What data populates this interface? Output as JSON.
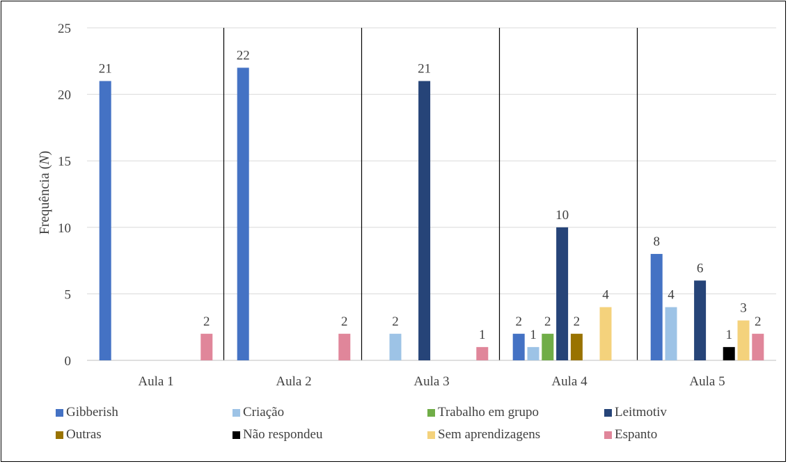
{
  "chart_data": {
    "type": "bar",
    "categories": [
      "Aula 1",
      "Aula 2",
      "Aula 3",
      "Aula 4",
      "Aula 5"
    ],
    "series": [
      {
        "name": "Gibberish",
        "color": "#4472C4",
        "values": [
          21,
          22,
          null,
          2,
          8
        ]
      },
      {
        "name": "Criação",
        "color": "#9DC3E6",
        "values": [
          null,
          null,
          2,
          1,
          4
        ]
      },
      {
        "name": "Trabalho em grupo",
        "color": "#70AD47",
        "values": [
          null,
          null,
          null,
          2,
          null
        ]
      },
      {
        "name": "Leitmotiv",
        "color": "#264478",
        "values": [
          null,
          null,
          21,
          10,
          6
        ]
      },
      {
        "name": "Outras",
        "color": "#997300",
        "values": [
          null,
          null,
          null,
          2,
          null
        ]
      },
      {
        "name": "Não respondeu",
        "color": "#000000",
        "values": [
          null,
          null,
          null,
          null,
          1
        ]
      },
      {
        "name": "Sem aprendizagens",
        "color": "#F4D27C",
        "values": [
          null,
          null,
          null,
          4,
          3
        ]
      },
      {
        "name": "Espanto",
        "color": "#E0869A",
        "values": [
          2,
          2,
          1,
          null,
          2
        ]
      }
    ],
    "ylabel_prefix": "Frequência (",
    "ylabel_italic": "N",
    "ylabel_suffix": ")",
    "ylim": [
      0,
      25
    ],
    "yticks": [
      "0",
      "5",
      "10",
      "15",
      "20",
      "25"
    ],
    "grid": true,
    "legend_position": "bottom"
  }
}
